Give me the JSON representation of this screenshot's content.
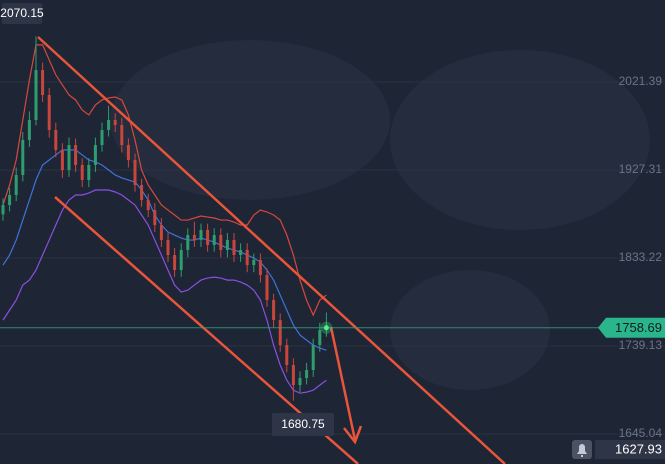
{
  "chart_data": {
    "type": "candlestick",
    "ylim": [
      1612.97,
      2109.08
    ],
    "yticks": [
      2021.39,
      1927.31,
      1833.22,
      1739.13,
      1645.04
    ],
    "up_color": "#2f9e6e",
    "down_color": "#c9463d",
    "open": [
      1880.0,
      1889.9,
      1900.6,
      1921.9,
      1959.4,
      1980.8,
      2034.2,
      2007.5,
      1970.1,
      1948.7,
      1927.3,
      1954.0,
      1932.7,
      1916.6,
      1932.7,
      1954.0,
      1970.1,
      1980.8,
      1975.4,
      1954.0,
      1938.0,
      1911.3,
      1895.2,
      1884.5,
      1868.5,
      1852.5,
      1836.4,
      1820.4,
      1841.8,
      1857.8,
      1852.5,
      1863.2,
      1847.1,
      1857.8,
      1841.8,
      1852.5,
      1836.4,
      1841.8,
      1825.7,
      1831.1,
      1815.0,
      1788.3,
      1766.9,
      1740.2,
      1718.8,
      1697.4,
      1704.9,
      1713.5,
      1740.2,
      1756.2
    ],
    "high": [
      1897,
      1908,
      1930,
      1968,
      1990,
      2070.15,
      2042,
      2015,
      1978,
      1956,
      1962,
      1961,
      1940,
      1940,
      1962,
      1978,
      1996,
      1988,
      1983,
      1961,
      1945,
      1918,
      1902,
      1892,
      1876,
      1860,
      1844,
      1849,
      1865,
      1872,
      1870,
      1870,
      1865,
      1865,
      1860,
      1860,
      1849,
      1849,
      1838,
      1838,
      1822,
      1795,
      1774,
      1747,
      1726,
      1712,
      1721,
      1747,
      1764,
      1775
    ],
    "low": [
      1873,
      1883,
      1894,
      1915,
      1952,
      1975,
      2000,
      1962,
      1941,
      1919,
      1920,
      1925,
      1909,
      1909,
      1925,
      1947,
      1963,
      1968,
      1946,
      1930,
      1904,
      1888,
      1877,
      1861,
      1845,
      1829,
      1813,
      1813,
      1834,
      1845,
      1845,
      1840,
      1840,
      1834,
      1834,
      1829,
      1829,
      1818,
      1818,
      1807,
      1781,
      1759,
      1733,
      1711,
      1680.75,
      1690,
      1698,
      1706,
      1733,
      1749
    ],
    "close": [
      1889.9,
      1900.6,
      1921.9,
      1959.4,
      1980.8,
      2034.2,
      2007.5,
      1970.1,
      1948.7,
      1927.3,
      1954.0,
      1932.7,
      1916.6,
      1932.7,
      1954.0,
      1970.1,
      1980.8,
      1975.4,
      1954.0,
      1938.0,
      1911.3,
      1895.2,
      1884.5,
      1868.5,
      1852.5,
      1836.4,
      1820.4,
      1841.8,
      1857.8,
      1852.5,
      1863.2,
      1847.1,
      1857.8,
      1841.8,
      1852.5,
      1836.4,
      1841.8,
      1825.7,
      1831.1,
      1815.0,
      1788.3,
      1766.9,
      1740.2,
      1718.8,
      1697.4,
      1704.9,
      1713.5,
      1740.2,
      1756.2,
      1758.69
    ],
    "series": [
      {
        "color": "#d8483b",
        "values": [
          1889.9,
          1911.3,
          1938.0,
          1980.8,
          2023.6,
          2061.1,
          2061.1,
          2045.0,
          2029.0,
          2018.3,
          2007.6,
          2002.2,
          1991.5,
          1986.2,
          1996.9,
          2002.2,
          2004.4,
          2005.4,
          2002.2,
          1986.2,
          1959.4,
          1927.3,
          1911.3,
          1900.6,
          1889.9,
          1884.5,
          1879.2,
          1873.8,
          1873.8,
          1876.0,
          1878.1,
          1877.0,
          1876.0,
          1873.8,
          1873.8,
          1871.7,
          1868.5,
          1868.5,
          1879.2,
          1884.5,
          1882.4,
          1879.2,
          1873.8,
          1857.8,
          1836.4,
          1809.6,
          1788.2,
          1772.2,
          1788.2,
          1793.6
        ]
      },
      {
        "color": "#3f72dc",
        "values": [
          1825.7,
          1836.4,
          1852.4,
          1873.8,
          1895.2,
          1916.6,
          1932.7,
          1938.0,
          1943.4,
          1948.7,
          1948.7,
          1948.7,
          1943.4,
          1938.0,
          1935.9,
          1932.7,
          1927.3,
          1922.0,
          1918.8,
          1916.6,
          1914.5,
          1905.9,
          1895.2,
          1879.2,
          1868.5,
          1861.0,
          1857.8,
          1854.6,
          1852.4,
          1852.4,
          1854.6,
          1852.4,
          1850.3,
          1847.1,
          1843.9,
          1841.7,
          1839.6,
          1836.4,
          1833.2,
          1828.9,
          1820.3,
          1809.6,
          1793.6,
          1777.5,
          1761.5,
          1750.8,
          1745.4,
          1740.1,
          1736.9,
          1734.7
        ]
      },
      {
        "color": "#8b4fe2",
        "values": [
          1766.8,
          1777.5,
          1788.2,
          1804.3,
          1809.6,
          1820.3,
          1836.4,
          1852.4,
          1868.5,
          1884.5,
          1895.2,
          1900.6,
          1900.6,
          1902.7,
          1905.9,
          1905.9,
          1905.9,
          1903.8,
          1900.6,
          1895.2,
          1889.9,
          1879.2,
          1868.5,
          1852.4,
          1836.4,
          1820.3,
          1804.3,
          1796.8,
          1798.9,
          1804.3,
          1809.6,
          1811.8,
          1812.8,
          1811.8,
          1809.6,
          1809.6,
          1807.5,
          1804.3,
          1798.9,
          1788.2,
          1766.8,
          1740.1,
          1718.7,
          1702.6,
          1691.9,
          1688.7,
          1689.8,
          1691.9,
          1697.3,
          1702.6
        ]
      }
    ],
    "alert_price": 1627.93
  }
}
